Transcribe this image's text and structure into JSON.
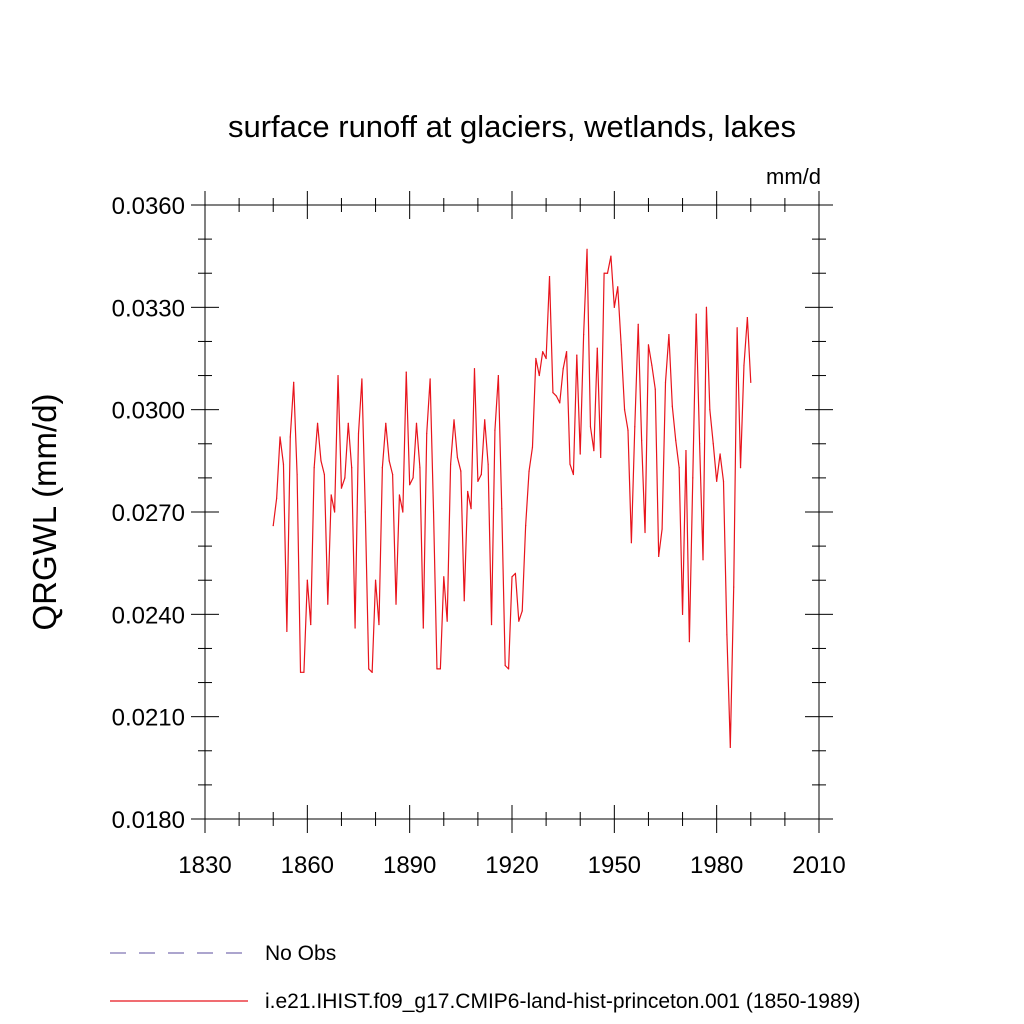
{
  "chart_data": {
    "type": "line",
    "title": "surface runoff at glaciers, wetlands, lakes",
    "units_label": "mm/d",
    "ylabel": "QRGWL  (mm/d)",
    "xlabel": "",
    "xlim": [
      1830,
      2010
    ],
    "ylim": [
      0.018,
      0.036
    ],
    "x_ticks": [
      1830,
      1860,
      1890,
      1920,
      1950,
      1980,
      2010
    ],
    "y_ticks": [
      0.018,
      0.021,
      0.024,
      0.027,
      0.03,
      0.033,
      0.036
    ],
    "x_tick_labels": [
      "1830",
      "1860",
      "1890",
      "1920",
      "1950",
      "1980",
      "2010"
    ],
    "y_tick_labels": [
      "0.0180",
      "0.0210",
      "0.0240",
      "0.0270",
      "0.0300",
      "0.0330",
      "0.0360"
    ],
    "grid": false,
    "legend_position": "bottom",
    "series": [
      {
        "name": "No Obs",
        "color": "#7a6fb0",
        "dash": true,
        "x_start": 1850,
        "values": []
      },
      {
        "name": "i.e21.IHIST.f09_g17.CMIP6-land-hist-princeton.001 (1850-1989)",
        "color": "#e8141c",
        "dash": false,
        "x_start": 1850,
        "values": [
          0.0266,
          0.0274,
          0.0292,
          0.0284,
          0.0235,
          0.0292,
          0.0308,
          0.0281,
          0.0223,
          0.0223,
          0.025,
          0.0237,
          0.0283,
          0.0296,
          0.0285,
          0.0281,
          0.0243,
          0.0275,
          0.027,
          0.031,
          0.0277,
          0.028,
          0.0296,
          0.0283,
          0.0236,
          0.0293,
          0.0309,
          0.027,
          0.0224,
          0.0223,
          0.025,
          0.0237,
          0.0283,
          0.0296,
          0.0285,
          0.0281,
          0.0243,
          0.0275,
          0.027,
          0.0311,
          0.0278,
          0.028,
          0.0296,
          0.0283,
          0.0236,
          0.0293,
          0.0309,
          0.027,
          0.0224,
          0.0224,
          0.0251,
          0.0238,
          0.0284,
          0.0297,
          0.0286,
          0.0282,
          0.0244,
          0.0276,
          0.0271,
          0.0312,
          0.0279,
          0.0281,
          0.0297,
          0.0284,
          0.0237,
          0.0294,
          0.031,
          0.0271,
          0.0225,
          0.0224,
          0.0251,
          0.0252,
          0.0238,
          0.0241,
          0.0266,
          0.0282,
          0.0289,
          0.0315,
          0.031,
          0.0317,
          0.0315,
          0.0339,
          0.0305,
          0.0304,
          0.0302,
          0.0312,
          0.0317,
          0.0284,
          0.0281,
          0.0316,
          0.0287,
          0.0322,
          0.0347,
          0.0295,
          0.0288,
          0.0318,
          0.0286,
          0.034,
          0.034,
          0.0345,
          0.033,
          0.0336,
          0.0319,
          0.03,
          0.0294,
          0.0261,
          0.0295,
          0.0325,
          0.0291,
          0.0264,
          0.0319,
          0.0313,
          0.0306,
          0.0257,
          0.0265,
          0.0308,
          0.0322,
          0.0301,
          0.0291,
          0.0283,
          0.024,
          0.0288,
          0.0232,
          0.028,
          0.0328,
          0.029,
          0.0256,
          0.033,
          0.03,
          0.029,
          0.0279,
          0.0287,
          0.0279,
          0.0234,
          0.0201,
          0.0248,
          0.0324,
          0.0283,
          0.0313,
          0.0327,
          0.0308
        ]
      }
    ]
  }
}
